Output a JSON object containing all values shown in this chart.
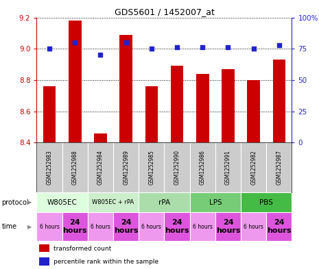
{
  "title": "GDS5601 / 1452007_at",
  "samples": [
    "GSM1252983",
    "GSM1252988",
    "GSM1252984",
    "GSM1252989",
    "GSM1252985",
    "GSM1252990",
    "GSM1252986",
    "GSM1252991",
    "GSM1252982",
    "GSM1252987"
  ],
  "transformed_counts": [
    8.76,
    9.18,
    8.46,
    9.09,
    8.76,
    8.89,
    8.84,
    8.87,
    8.8,
    8.93
  ],
  "percentile_ranks": [
    75,
    80,
    70,
    80,
    75,
    76,
    76,
    76,
    75,
    78
  ],
  "ylim_left": [
    8.4,
    9.2
  ],
  "ylim_right": [
    0,
    100
  ],
  "yticks_left": [
    8.4,
    8.6,
    8.8,
    9.0,
    9.2
  ],
  "yticks_right": [
    0,
    25,
    50,
    75,
    100
  ],
  "ytick_labels_right": [
    "0",
    "25",
    "50",
    "75",
    "100%"
  ],
  "bar_color": "#cc0000",
  "dot_color": "#2222cc",
  "protocols": [
    {
      "label": "W805EC",
      "color": "#ddffdd",
      "start": 0,
      "end": 2
    },
    {
      "label": "W805EC + rPA",
      "color": "#cceecc",
      "start": 2,
      "end": 4
    },
    {
      "label": "rPA",
      "color": "#aaddaa",
      "start": 4,
      "end": 6
    },
    {
      "label": "LPS",
      "color": "#77cc77",
      "start": 6,
      "end": 8
    },
    {
      "label": "PBS",
      "color": "#44bb44",
      "start": 8,
      "end": 10
    }
  ],
  "times": [
    "6 hours",
    "24\nhours",
    "6 hours",
    "24\nhours",
    "6 hours",
    "24\nhours",
    "6 hours",
    "24\nhours",
    "6 hours",
    "24\nhours"
  ],
  "time_small": [
    true,
    false,
    true,
    false,
    true,
    false,
    true,
    false,
    true,
    false
  ],
  "time_color_light": "#ee99ee",
  "time_color_dark": "#dd55dd",
  "legend_items": [
    {
      "color": "#cc0000",
      "label": "transformed count"
    },
    {
      "color": "#2222cc",
      "label": "percentile rank within the sample"
    }
  ],
  "sample_bg_color": "#cccccc",
  "sample_border_color": "#ffffff",
  "protocol_label": "protocol",
  "time_label": "time"
}
